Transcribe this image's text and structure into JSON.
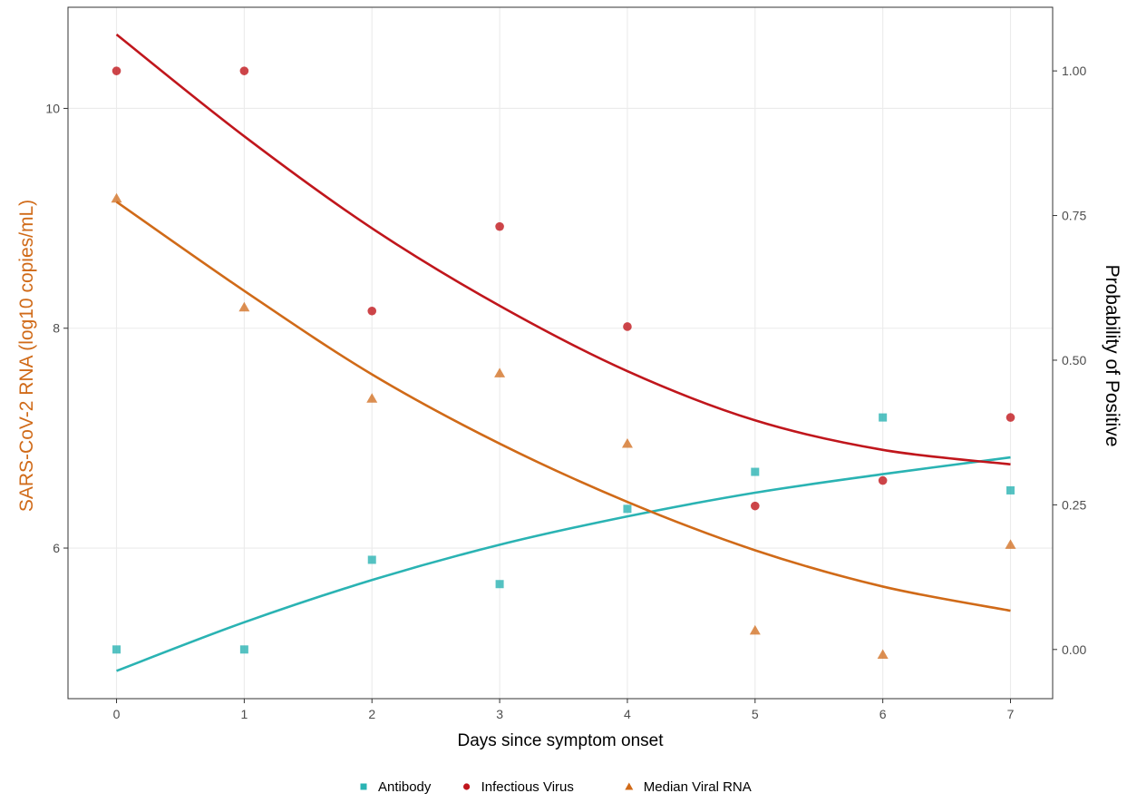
{
  "chart_data": {
    "type": "scatter",
    "xlabel": "Days since symptom onset",
    "ylabel_left": "SARS-CoV-2 RNA (log10 copies/mL)",
    "ylabel_right": "Probability of Positive",
    "xlim": [
      -0.38,
      7.33
    ],
    "ylim_left": [
      4.63,
      10.92
    ],
    "ylim_right": [
      -0.085,
      1.11
    ],
    "x_ticks": [
      "0",
      "1",
      "2",
      "3",
      "4",
      "5",
      "6",
      "7"
    ],
    "y_left_ticks": [
      "6",
      "8",
      "10"
    ],
    "y_right_ticks": [
      "0.00",
      "0.25",
      "0.50",
      "0.75",
      "1.00"
    ],
    "grid": true,
    "legend_position": "bottom",
    "series": [
      {
        "name": "Antibody",
        "axis": "right",
        "marker": "square",
        "color": "#2ab3b3",
        "points": [
          [
            0,
            0.0
          ],
          [
            1,
            0.0
          ],
          [
            2,
            0.155
          ],
          [
            3,
            0.113
          ],
          [
            4,
            0.243
          ],
          [
            5,
            0.307
          ],
          [
            6,
            0.401
          ],
          [
            7,
            0.275
          ]
        ],
        "fit": [
          [
            0,
            -0.037
          ],
          [
            1,
            0.047
          ],
          [
            2,
            0.12
          ],
          [
            3,
            0.181
          ],
          [
            4,
            0.23
          ],
          [
            5,
            0.271
          ],
          [
            6,
            0.303
          ],
          [
            7,
            0.332
          ]
        ]
      },
      {
        "name": "Infectious Virus",
        "axis": "right",
        "marker": "circle",
        "color": "#c0161c",
        "points": [
          [
            0,
            1.0
          ],
          [
            1,
            1.0
          ],
          [
            2,
            0.585
          ],
          [
            3,
            0.731
          ],
          [
            4,
            0.558
          ],
          [
            5,
            0.248
          ],
          [
            6,
            0.292
          ],
          [
            7,
            0.401
          ]
        ],
        "fit": [
          [
            0,
            1.063
          ],
          [
            1,
            0.887
          ],
          [
            2,
            0.728
          ],
          [
            3,
            0.594
          ],
          [
            4,
            0.481
          ],
          [
            5,
            0.396
          ],
          [
            6,
            0.345
          ],
          [
            7,
            0.32
          ]
        ]
      },
      {
        "name": "Median Viral RNA",
        "axis": "left",
        "marker": "triangle",
        "color": "#d06a18",
        "points": [
          [
            0,
            9.18
          ],
          [
            1,
            8.19
          ],
          [
            2,
            7.36
          ],
          [
            3,
            7.59
          ],
          [
            4,
            6.95
          ],
          [
            5,
            5.25
          ],
          [
            6,
            5.03
          ],
          [
            7,
            6.03
          ]
        ],
        "fit": [
          [
            0,
            9.15
          ],
          [
            1,
            8.34
          ],
          [
            2,
            7.58
          ],
          [
            3,
            6.95
          ],
          [
            4,
            6.42
          ],
          [
            5,
            5.98
          ],
          [
            6,
            5.65
          ],
          [
            7,
            5.43
          ]
        ]
      }
    ]
  }
}
